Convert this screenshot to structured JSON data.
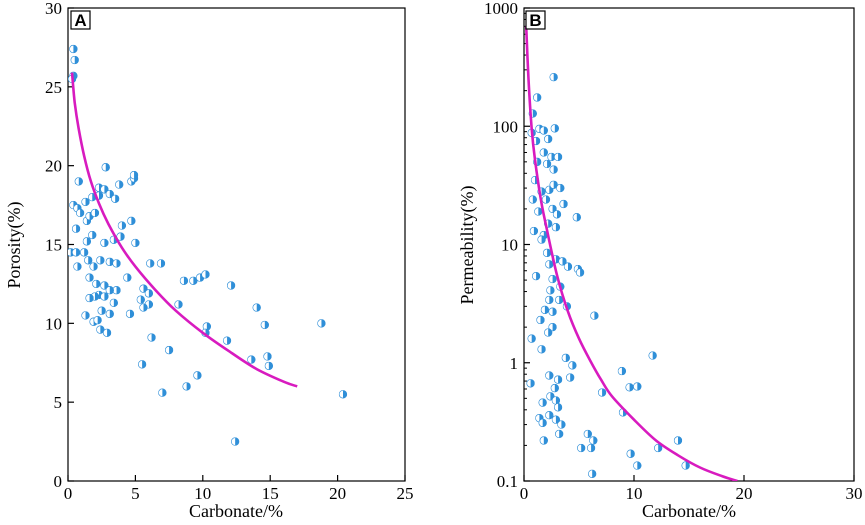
{
  "chart_data": [
    {
      "panel": "A",
      "type": "scatter",
      "title": "",
      "xlabel": "Carbonate/%",
      "ylabel": "Porosity(%)",
      "xlim": [
        0,
        25
      ],
      "ylim": [
        0,
        30
      ],
      "yscale": "linear",
      "xticks": [
        "0",
        "5",
        "10",
        "15",
        "20",
        "25"
      ],
      "yticks": [
        "0",
        "5",
        "10",
        "15",
        "20",
        "25",
        "30"
      ],
      "series": [
        {
          "name": "samples",
          "marker_color": "#2f8fd8",
          "points": [
            [
              0.4,
              27.4
            ],
            [
              0.5,
              26.7
            ],
            [
              0.4,
              25.7
            ],
            [
              0.3,
              25.5
            ],
            [
              0.8,
              19.0
            ],
            [
              0.4,
              17.5
            ],
            [
              0.7,
              17.3
            ],
            [
              1.3,
              17.7
            ],
            [
              0.9,
              17.0
            ],
            [
              1.4,
              16.5
            ],
            [
              0.6,
              16.0
            ],
            [
              0.2,
              14.5
            ],
            [
              0.6,
              14.5
            ],
            [
              1.2,
              14.5
            ],
            [
              0.7,
              13.6
            ],
            [
              1.5,
              14.0
            ],
            [
              1.9,
              13.6
            ],
            [
              1.4,
              15.2
            ],
            [
              1.8,
              15.6
            ],
            [
              1.6,
              16.8
            ],
            [
              2.0,
              17.0
            ],
            [
              1.8,
              18.0
            ],
            [
              2.3,
              18.1
            ],
            [
              2.3,
              18.6
            ],
            [
              2.7,
              18.5
            ],
            [
              2.8,
              19.9
            ],
            [
              3.1,
              18.2
            ],
            [
              3.5,
              17.9
            ],
            [
              3.8,
              18.8
            ],
            [
              4.0,
              16.2
            ],
            [
              3.9,
              15.5
            ],
            [
              3.4,
              15.3
            ],
            [
              2.7,
              15.1
            ],
            [
              2.4,
              14.0
            ],
            [
              3.1,
              13.9
            ],
            [
              3.6,
              13.8
            ],
            [
              4.7,
              19.0
            ],
            [
              4.9,
              19.2
            ],
            [
              4.9,
              19.4
            ],
            [
              4.7,
              16.5
            ],
            [
              5.0,
              15.1
            ],
            [
              4.4,
              12.9
            ],
            [
              1.6,
              12.9
            ],
            [
              2.1,
              12.5
            ],
            [
              2.3,
              11.8
            ],
            [
              2.7,
              12.4
            ],
            [
              2.0,
              11.7
            ],
            [
              1.6,
              11.6
            ],
            [
              1.3,
              10.5
            ],
            [
              1.9,
              10.1
            ],
            [
              2.2,
              10.2
            ],
            [
              2.4,
              9.6
            ],
            [
              2.9,
              9.4
            ],
            [
              3.1,
              10.6
            ],
            [
              3.4,
              11.3
            ],
            [
              3.6,
              12.1
            ],
            [
              3.1,
              12.1
            ],
            [
              2.7,
              11.7
            ],
            [
              2.5,
              10.8
            ],
            [
              4.6,
              10.6
            ],
            [
              5.4,
              11.5
            ],
            [
              5.6,
              12.2
            ],
            [
              6.0,
              11.9
            ],
            [
              6.0,
              11.2
            ],
            [
              5.6,
              11.0
            ],
            [
              6.2,
              9.1
            ],
            [
              6.1,
              13.8
            ],
            [
              6.9,
              13.8
            ],
            [
              8.6,
              12.7
            ],
            [
              9.3,
              12.7
            ],
            [
              9.8,
              12.9
            ],
            [
              10.2,
              13.1
            ],
            [
              8.2,
              11.2
            ],
            [
              12.1,
              12.4
            ],
            [
              10.3,
              9.8
            ],
            [
              10.2,
              9.4
            ],
            [
              11.8,
              8.9
            ],
            [
              7.5,
              8.3
            ],
            [
              5.5,
              7.4
            ],
            [
              9.6,
              6.7
            ],
            [
              8.8,
              6.0
            ],
            [
              7.0,
              5.6
            ],
            [
              13.6,
              7.7
            ],
            [
              14.8,
              7.9
            ],
            [
              14.9,
              7.3
            ],
            [
              14.6,
              9.9
            ],
            [
              14.0,
              11.0
            ],
            [
              18.8,
              10.0
            ],
            [
              20.4,
              5.5
            ],
            [
              12.4,
              2.5
            ]
          ]
        }
      ],
      "fit_curve": {
        "name": "fitted trend",
        "color": "#d81bbf",
        "x": [
          0.3,
          0.5,
          0.8,
          1.2,
          1.7,
          2.3,
          3.0,
          4.0,
          5.0,
          6.5,
          8.0,
          10.0,
          12.0,
          14.0,
          16.0,
          17.0
        ],
        "y": [
          25.9,
          24.0,
          22.3,
          20.6,
          19.0,
          17.6,
          16.3,
          14.8,
          13.6,
          12.1,
          10.8,
          9.4,
          8.2,
          7.1,
          6.3,
          6.0
        ]
      }
    },
    {
      "panel": "B",
      "type": "scatter",
      "title": "",
      "xlabel": "Carbonate/%",
      "ylabel": "Permeability(%)",
      "xlim": [
        0,
        30
      ],
      "ylim": [
        0.1,
        1000
      ],
      "yscale": "log",
      "xticks": [
        "0",
        "10",
        "20",
        "30"
      ],
      "yticks": [
        "0.1",
        "1",
        "10",
        "100",
        "1000"
      ],
      "series": [
        {
          "name": "samples",
          "marker_color": "#2f8fd8",
          "points": [
            [
              1.2,
              175
            ],
            [
              2.7,
              260
            ],
            [
              0.8,
              128
            ],
            [
              1.4,
              95
            ],
            [
              1.8,
              92
            ],
            [
              2.8,
              96
            ],
            [
              0.7,
              88
            ],
            [
              1.1,
              75
            ],
            [
              2.2,
              78
            ],
            [
              1.8,
              60
            ],
            [
              2.5,
              55
            ],
            [
              3.1,
              55
            ],
            [
              1.2,
              50
            ],
            [
              2.1,
              48
            ],
            [
              2.7,
              43
            ],
            [
              1.0,
              35
            ],
            [
              2.3,
              29
            ],
            [
              2.7,
              32
            ],
            [
              3.3,
              30
            ],
            [
              1.6,
              28
            ],
            [
              2.0,
              24
            ],
            [
              0.8,
              24
            ],
            [
              1.3,
              19
            ],
            [
              2.6,
              20
            ],
            [
              3.0,
              18
            ],
            [
              3.6,
              22
            ],
            [
              4.8,
              17
            ],
            [
              2.2,
              15
            ],
            [
              2.9,
              14
            ],
            [
              1.8,
              12
            ],
            [
              0.9,
              13
            ],
            [
              1.6,
              11
            ],
            [
              2.1,
              8.5
            ],
            [
              2.9,
              7.5
            ],
            [
              2.3,
              6.8
            ],
            [
              3.5,
              7.2
            ],
            [
              4.0,
              6.5
            ],
            [
              4.9,
              6.2
            ],
            [
              5.1,
              5.8
            ],
            [
              1.1,
              5.4
            ],
            [
              2.6,
              5.1
            ],
            [
              3.3,
              4.4
            ],
            [
              2.4,
              4.1
            ],
            [
              2.3,
              3.4
            ],
            [
              3.2,
              3.4
            ],
            [
              3.9,
              3.0
            ],
            [
              1.9,
              2.8
            ],
            [
              2.6,
              2.7
            ],
            [
              1.5,
              2.3
            ],
            [
              2.6,
              2.0
            ],
            [
              2.2,
              1.8
            ],
            [
              0.7,
              1.6
            ],
            [
              1.6,
              1.3
            ],
            [
              3.8,
              1.1
            ],
            [
              6.4,
              2.5
            ],
            [
              4.4,
              0.95
            ],
            [
              2.3,
              0.78
            ],
            [
              3.1,
              0.72
            ],
            [
              4.2,
              0.75
            ],
            [
              0.6,
              0.67
            ],
            [
              2.8,
              0.61
            ],
            [
              2.4,
              0.52
            ],
            [
              2.9,
              0.48
            ],
            [
              3.1,
              0.42
            ],
            [
              1.7,
              0.46
            ],
            [
              2.3,
              0.36
            ],
            [
              1.4,
              0.34
            ],
            [
              1.7,
              0.31
            ],
            [
              2.9,
              0.33
            ],
            [
              3.4,
              0.3
            ],
            [
              3.2,
              0.25
            ],
            [
              1.8,
              0.22
            ],
            [
              5.8,
              0.25
            ],
            [
              6.3,
              0.22
            ],
            [
              5.2,
              0.19
            ],
            [
              6.1,
              0.19
            ],
            [
              7.1,
              0.56
            ],
            [
              8.9,
              0.85
            ],
            [
              9.6,
              0.62
            ],
            [
              10.3,
              0.63
            ],
            [
              11.7,
              1.15
            ],
            [
              9.0,
              0.38
            ],
            [
              9.7,
              0.17
            ],
            [
              10.3,
              0.135
            ],
            [
              12.2,
              0.19
            ],
            [
              14.0,
              0.22
            ],
            [
              14.7,
              0.135
            ],
            [
              6.2,
              0.115
            ]
          ]
        }
      ],
      "fit_curve": {
        "name": "fitted trend",
        "color": "#d81bbf",
        "x": [
          0.2,
          0.4,
          0.7,
          1.0,
          1.5,
          2.0,
          3.0,
          4.0,
          5.0,
          6.0,
          7.0,
          8.0,
          10.0,
          12.0,
          14.0,
          16.0,
          18.0,
          19.4
        ],
        "y": [
          700,
          260,
          95,
          52,
          25,
          14.5,
          5.5,
          2.7,
          1.6,
          1.05,
          0.72,
          0.52,
          0.33,
          0.22,
          0.165,
          0.13,
          0.11,
          0.1
        ]
      }
    }
  ]
}
